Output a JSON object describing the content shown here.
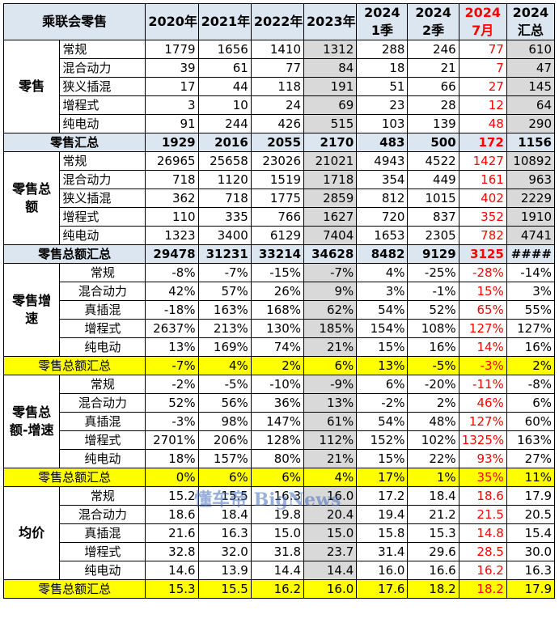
{
  "header": {
    "corner": "乘联会零售",
    "cols": [
      "2020年",
      "2021年",
      "2022年",
      "2023年",
      "2024\n1季",
      "2024\n2季",
      "2024\n7月",
      "2024\n汇总"
    ]
  },
  "groups": [
    {
      "label": "零售",
      "rows": [
        {
          "name": "常规",
          "values": [
            "1779",
            "1656",
            "1410",
            "1312",
            "288",
            "246",
            "77",
            "610"
          ]
        },
        {
          "name": "混合动力",
          "values": [
            "39",
            "61",
            "77",
            "84",
            "18",
            "21",
            "7",
            "47"
          ]
        },
        {
          "name": "狭义插混",
          "values": [
            "17",
            "44",
            "118",
            "191",
            "51",
            "66",
            "27",
            "145"
          ]
        },
        {
          "name": "增程式",
          "values": [
            "3",
            "10",
            "24",
            "69",
            "23",
            "28",
            "12",
            "64"
          ]
        },
        {
          "name": "纯电动",
          "values": [
            "91",
            "244",
            "426",
            "515",
            "103",
            "139",
            "48",
            "290"
          ]
        }
      ],
      "summary": {
        "name": "零售汇总",
        "values": [
          "1929",
          "2016",
          "2055",
          "2170",
          "483",
          "500",
          "172",
          "1156"
        ],
        "style": "sum"
      }
    },
    {
      "label": "零售总额",
      "rows": [
        {
          "name": "常规",
          "values": [
            "26965",
            "25658",
            "23026",
            "21021",
            "4943",
            "4522",
            "1427",
            "10892"
          ]
        },
        {
          "name": "混合动力",
          "values": [
            "718",
            "1120",
            "1519",
            "1718",
            "354",
            "449",
            "161",
            "963"
          ]
        },
        {
          "name": "狭义插混",
          "values": [
            "362",
            "718",
            "1775",
            "2859",
            "812",
            "1015",
            "402",
            "2229"
          ]
        },
        {
          "name": "增程式",
          "values": [
            "110",
            "335",
            "766",
            "1627",
            "720",
            "837",
            "352",
            "1910"
          ]
        },
        {
          "name": "纯电动",
          "values": [
            "1323",
            "3400",
            "6129",
            "7404",
            "1653",
            "2305",
            "782",
            "4741"
          ]
        }
      ],
      "summary": {
        "name": "零售总额汇总",
        "values": [
          "29478",
          "31231",
          "33214",
          "34628",
          "8482",
          "9129",
          "3125",
          "####"
        ],
        "style": "sum"
      }
    },
    {
      "label": "零售增速",
      "rows": [
        {
          "name": "常规",
          "values": [
            "-8%",
            "-7%",
            "-15%",
            "-7%",
            "4%",
            "-25%",
            "-28%",
            "-14%"
          ]
        },
        {
          "name": "混合动力",
          "values": [
            "42%",
            "57%",
            "26%",
            "9%",
            "3%",
            "-1%",
            "15%",
            "3%"
          ]
        },
        {
          "name": "真插混",
          "values": [
            "-18%",
            "163%",
            "168%",
            "62%",
            "54%",
            "52%",
            "65%",
            "55%"
          ]
        },
        {
          "name": "增程式",
          "values": [
            "2637%",
            "213%",
            "130%",
            "185%",
            "154%",
            "108%",
            "127%",
            "127%"
          ]
        },
        {
          "name": "纯电动",
          "values": [
            "13%",
            "169%",
            "74%",
            "21%",
            "15%",
            "16%",
            "14%",
            "16%"
          ]
        }
      ],
      "summary": {
        "name": "零售总额汇总",
        "values": [
          "-7%",
          "4%",
          "2%",
          "6%",
          "13%",
          "-5%",
          "-3%",
          "2%"
        ],
        "style": "ysum"
      }
    },
    {
      "label": "零售总额-增速",
      "rows": [
        {
          "name": "常规",
          "values": [
            "-2%",
            "-5%",
            "-10%",
            "-9%",
            "6%",
            "-20%",
            "-11%",
            "-8%"
          ]
        },
        {
          "name": "混合动力",
          "values": [
            "52%",
            "56%",
            "36%",
            "13%",
            "-2%",
            "2%",
            "46%",
            "6%"
          ]
        },
        {
          "name": "真插混",
          "values": [
            "-3%",
            "98%",
            "147%",
            "61%",
            "54%",
            "48%",
            "127%",
            "60%"
          ]
        },
        {
          "name": "增程式",
          "values": [
            "2701%",
            "206%",
            "128%",
            "112%",
            "152%",
            "102%",
            "1325%",
            "163%"
          ]
        },
        {
          "name": "纯电动",
          "values": [
            "18%",
            "157%",
            "80%",
            "21%",
            "15%",
            "22%",
            "93%",
            "27%"
          ]
        }
      ],
      "summary": {
        "name": "零售总额汇总",
        "values": [
          "0%",
          "6%",
          "6%",
          "4%",
          "17%",
          "1%",
          "35%",
          "11%"
        ],
        "style": "ysum"
      }
    },
    {
      "label": "均价",
      "rows": [
        {
          "name": "常规",
          "values": [
            "15.2",
            "15.5",
            "16.3",
            "16.0",
            "17.2",
            "18.4",
            "18.6",
            "17.9"
          ]
        },
        {
          "name": "混合动力",
          "values": [
            "18.6",
            "18.4",
            "19.8",
            "20.4",
            "19.4",
            "21.2",
            "21.5",
            "20.5"
          ]
        },
        {
          "name": "真插混",
          "values": [
            "21.6",
            "16.3",
            "15.0",
            "15.0",
            "15.8",
            "15.3",
            "14.8",
            "15.4"
          ]
        },
        {
          "name": "增程式",
          "values": [
            "32.8",
            "32.0",
            "31.8",
            "23.7",
            "31.4",
            "29.6",
            "28.5",
            "30.0"
          ]
        },
        {
          "name": "纯电动",
          "values": [
            "14.6",
            "13.9",
            "14.4",
            "14.4",
            "16.0",
            "16.6",
            "16.2",
            "16.3"
          ]
        }
      ],
      "summary": {
        "name": "零售总额汇总",
        "values": [
          "15.3",
          "15.5",
          "16.2",
          "16.0",
          "17.6",
          "18.2",
          "18.2",
          "17.9"
        ],
        "style": "ysum"
      }
    }
  ],
  "watermark": "懂车帝 BigNews",
  "colors": {
    "header_bg": "#dce6f1",
    "highlight_yellow": "#ffff00",
    "gray_col": "#d9d9d9",
    "red_text": "#ff0000"
  }
}
